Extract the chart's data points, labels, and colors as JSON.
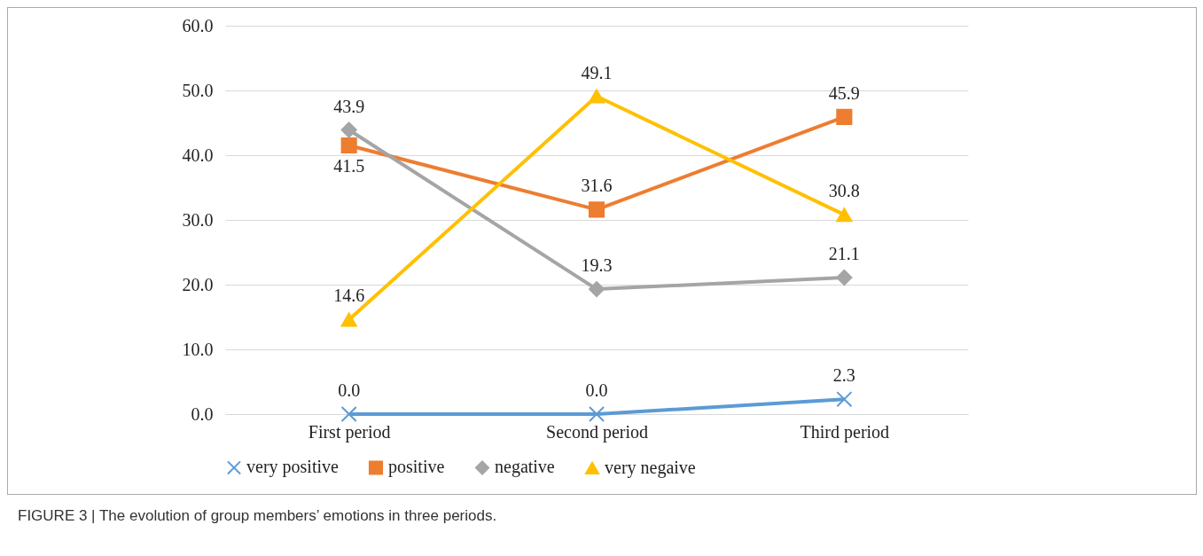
{
  "chart_data": {
    "type": "line",
    "categories": [
      "First period",
      "Second period",
      "Third period"
    ],
    "series": [
      {
        "name": "very positive",
        "color": "#5b9bd5",
        "marker": "cross",
        "values": [
          0.0,
          0.0,
          2.3
        ],
        "value_labels": [
          "0.0",
          "0.0",
          "2.3"
        ]
      },
      {
        "name": "positive",
        "color": "#ed7d31",
        "marker": "square",
        "values": [
          41.5,
          31.6,
          45.9
        ],
        "value_labels": [
          "41.5",
          "31.6",
          "45.9"
        ]
      },
      {
        "name": "negative",
        "color": "#a5a5a5",
        "marker": "diamond",
        "values": [
          43.9,
          19.3,
          21.1
        ],
        "value_labels": [
          "43.9",
          "19.3",
          "21.1"
        ]
      },
      {
        "name": "very negaive",
        "color": "#ffc000",
        "marker": "triangle",
        "values": [
          14.6,
          49.1,
          30.8
        ],
        "value_labels": [
          "14.6",
          "49.1",
          "30.8"
        ]
      }
    ],
    "ylim": [
      0,
      60
    ],
    "yticks": [
      {
        "value": 0,
        "label": "0.0"
      },
      {
        "value": 10,
        "label": "10.0"
      },
      {
        "value": 20,
        "label": "20.0"
      },
      {
        "value": 30,
        "label": "30.0"
      },
      {
        "value": 40,
        "label": "40.0"
      },
      {
        "value": 50,
        "label": "50.0"
      },
      {
        "value": 60,
        "label": "60.0"
      }
    ],
    "grid": "y",
    "legend": "bottom",
    "line_style": "solid",
    "annotations": [
      "FIGURE 3 | The evolution of group members’ emotions in three periods."
    ]
  }
}
